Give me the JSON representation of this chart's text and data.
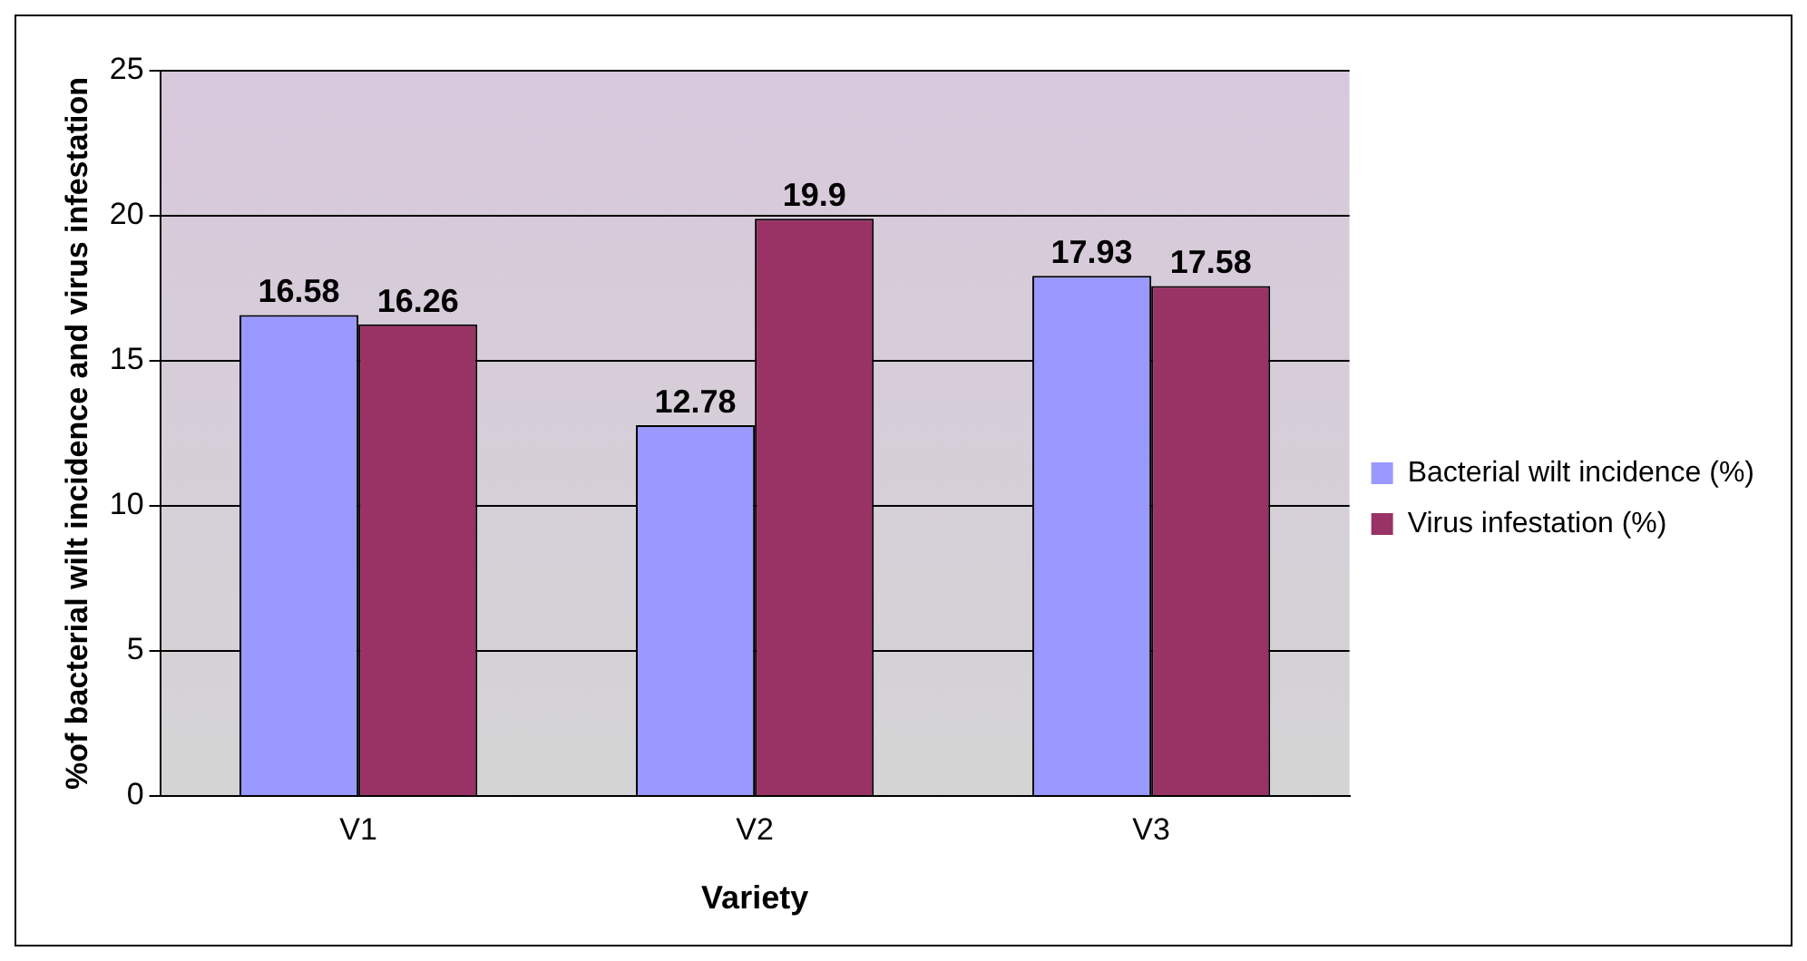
{
  "chart_data": {
    "type": "bar",
    "xlabel": "Variety",
    "ylabel": "%of bacterial wilt incidence and virus infestation",
    "categories": [
      "V1",
      "V2",
      "V3"
    ],
    "series": [
      {
        "name": "Bacterial wilt incidence (%)",
        "color": "#9999ff",
        "values": [
          16.58,
          12.78,
          17.93
        ]
      },
      {
        "name": "Virus infestation (%)",
        "color": "#993366",
        "values": [
          16.26,
          19.9,
          17.58
        ]
      }
    ],
    "ylim": [
      0,
      25
    ],
    "yticks": [
      0,
      5,
      10,
      15,
      20,
      25
    ],
    "grid": "y",
    "legend": "right",
    "data_labels": true
  }
}
